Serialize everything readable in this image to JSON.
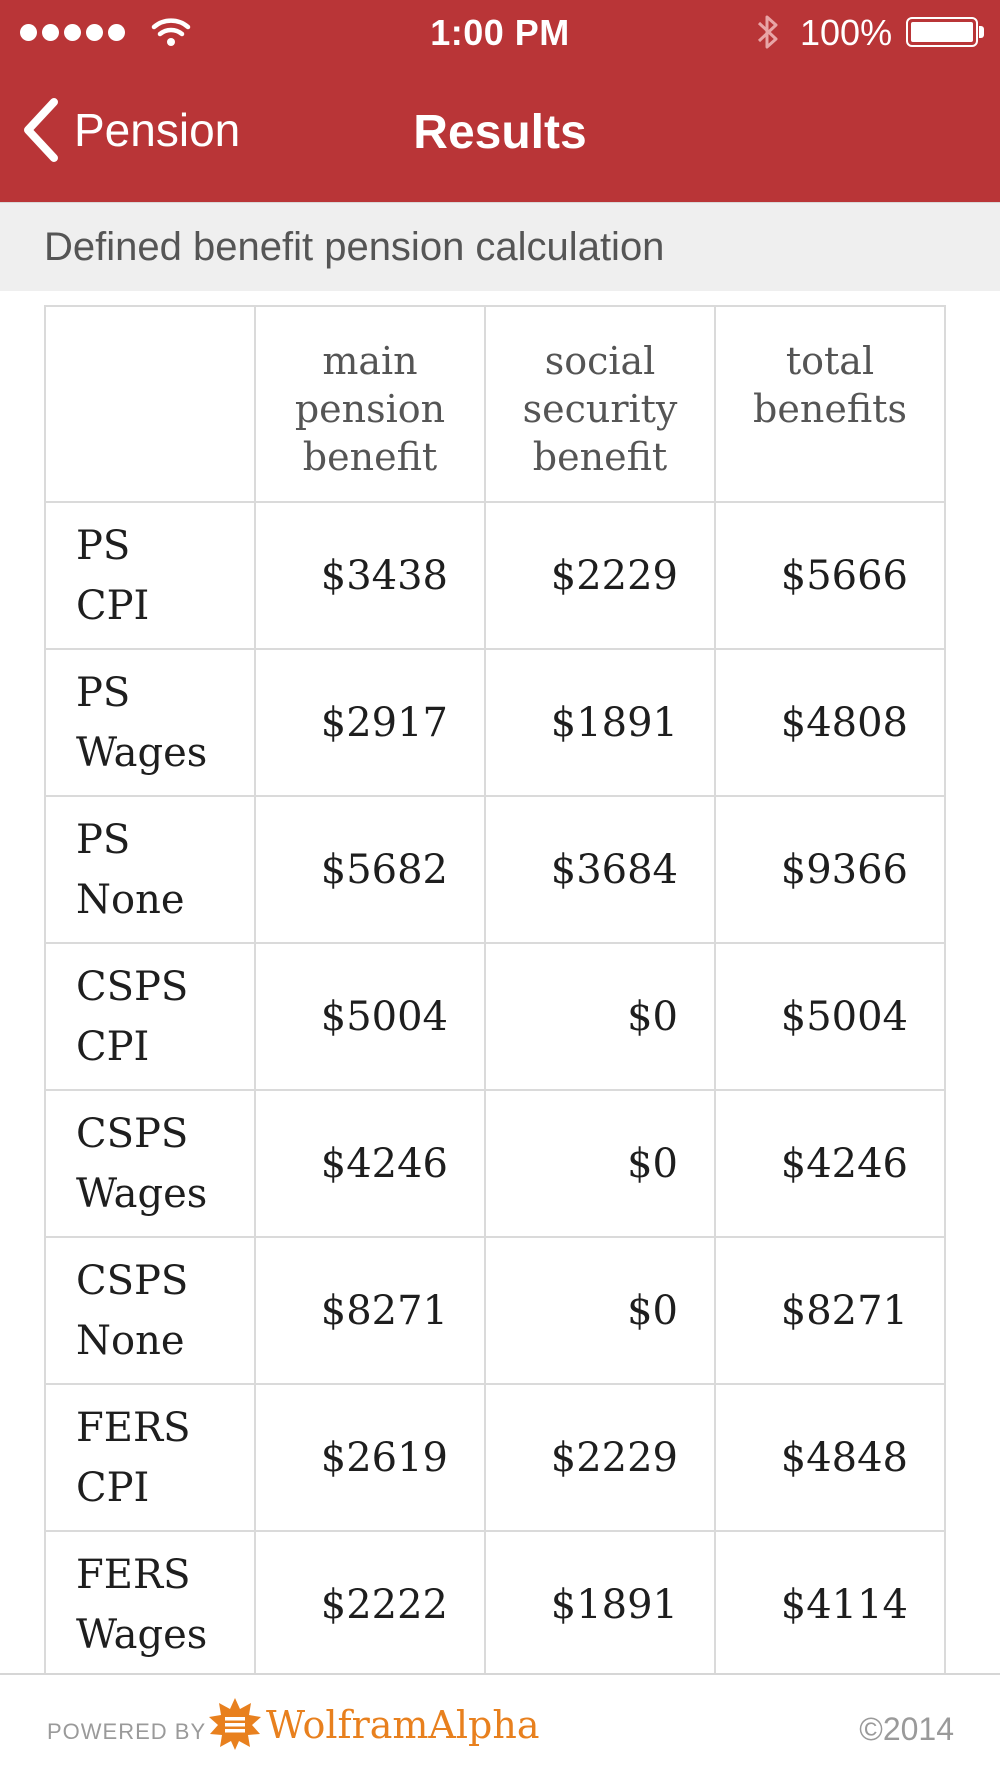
{
  "status_bar": {
    "time": "1:00 PM",
    "battery_percent": "100%"
  },
  "nav": {
    "back_label": "Pension",
    "title": "Results"
  },
  "section": {
    "title": "Defined benefit pension calculation"
  },
  "table": {
    "headers": [
      "",
      "main pension benefit",
      "social security benefit",
      "total benefits"
    ],
    "rows": [
      {
        "plan": "PS",
        "index": "CPI",
        "main": "$3438",
        "social": "$2229",
        "total": "$5666"
      },
      {
        "plan": "PS",
        "index": "Wages",
        "main": "$2917",
        "social": "$1891",
        "total": "$4808"
      },
      {
        "plan": "PS",
        "index": "None",
        "main": "$5682",
        "social": "$3684",
        "total": "$9366"
      },
      {
        "plan": "CSPS",
        "index": "CPI",
        "main": "$5004",
        "social": "$0",
        "total": "$5004"
      },
      {
        "plan": "CSPS",
        "index": "Wages",
        "main": "$4246",
        "social": "$0",
        "total": "$4246"
      },
      {
        "plan": "CSPS",
        "index": "None",
        "main": "$8271",
        "social": "$0",
        "total": "$8271"
      },
      {
        "plan": "FERS",
        "index": "CPI",
        "main": "$2619",
        "social": "$2229",
        "total": "$4848"
      },
      {
        "plan": "FERS",
        "index": "Wages",
        "main": "$2222",
        "social": "$1891",
        "total": "$4114"
      }
    ]
  },
  "footer": {
    "powered_by": "POWERED BY",
    "brand": "WolframAlpha",
    "copyright": "©2014"
  },
  "colors": {
    "header_bg": "#b93537",
    "brand_orange": "#e8801e"
  }
}
